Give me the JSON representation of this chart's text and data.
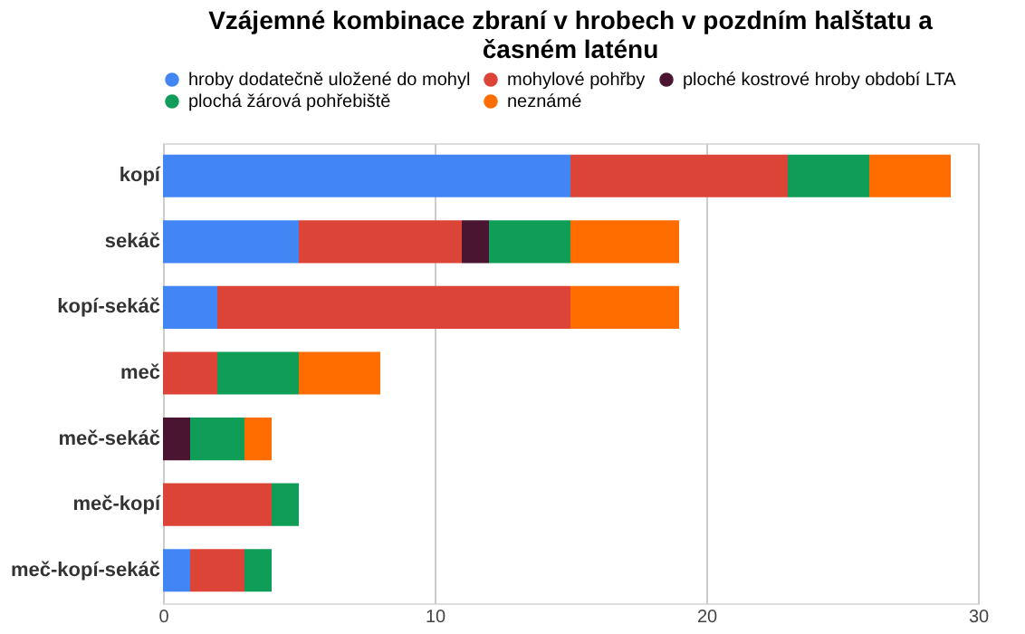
{
  "chart_data": {
    "type": "bar",
    "orientation": "horizontal",
    "stacked": true,
    "title": "Vzájemné kombinace zbraní v hrobech v pozdním halštatu a časném laténu",
    "categories": [
      "kopí",
      "sekáč",
      "kopí-sekáč",
      "meč",
      "meč-sekáč",
      "meč-kopí",
      "meč-kopí-sekáč"
    ],
    "series": [
      {
        "name": "hroby dodatečně uložené do mohyl",
        "color": "#4285f4",
        "values": [
          15,
          5,
          2,
          null,
          null,
          null,
          1
        ]
      },
      {
        "name": "mohylové pohřby",
        "color": "#db4437",
        "values": [
          8,
          6,
          13,
          2,
          null,
          4,
          2
        ]
      },
      {
        "name": "ploché kostrové hroby období LTA",
        "color": "#4a1530",
        "values": [
          null,
          1,
          null,
          null,
          1,
          null,
          null
        ]
      },
      {
        "name": "plochá žárová pohřebiště",
        "color": "#0f9d58",
        "values": [
          3,
          3,
          null,
          3,
          2,
          1,
          1
        ]
      },
      {
        "name": "neznámé",
        "color": "#ff6d01",
        "values": [
          3,
          4,
          4,
          3,
          1,
          null,
          null
        ]
      }
    ],
    "xlim": [
      0,
      30
    ],
    "xticks": [
      0,
      10,
      20,
      30
    ],
    "grid": "x",
    "legend": "top"
  }
}
